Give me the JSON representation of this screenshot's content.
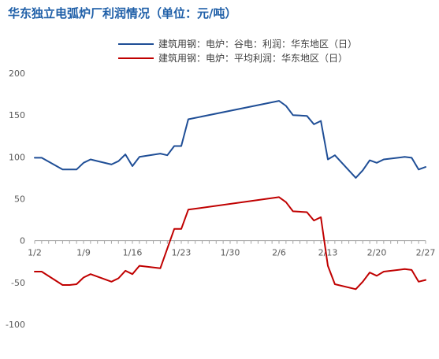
{
  "chart_data": {
    "type": "line",
    "title": "华东独立电弧炉厂利润情况（单位：元/吨）",
    "xlabel": "",
    "ylabel": "",
    "ylim": [
      -100,
      200
    ],
    "yticks": [
      -100,
      -50,
      0,
      50,
      100,
      150,
      200
    ],
    "x_domain": [
      "1/2",
      "2/27"
    ],
    "xticks": [
      "1/2",
      "1/9",
      "1/16",
      "1/23",
      "1/30",
      "2/6",
      "2/13",
      "2/20",
      "2/27"
    ],
    "grid": false,
    "legend_position": "top-center",
    "series": [
      {
        "name": "建筑用钢：电炉：谷电：利润：华东地区（日）",
        "color": "#1f4e96",
        "points": [
          [
            "1/2",
            99
          ],
          [
            "1/3",
            99
          ],
          [
            "1/6",
            85
          ],
          [
            "1/8",
            85
          ],
          [
            "1/9",
            93
          ],
          [
            "1/10",
            97
          ],
          [
            "1/13",
            91
          ],
          [
            "1/14",
            95
          ],
          [
            "1/15",
            103
          ],
          [
            "1/16",
            89
          ],
          [
            "1/17",
            100
          ],
          [
            "1/20",
            104
          ],
          [
            "1/21",
            102
          ],
          [
            "1/22",
            113
          ],
          [
            "1/23",
            113
          ],
          [
            "1/24",
            145
          ],
          [
            "2/6",
            167
          ],
          [
            "2/7",
            161
          ],
          [
            "2/8",
            150
          ],
          [
            "2/10",
            149
          ],
          [
            "2/11",
            139
          ],
          [
            "2/12",
            143
          ],
          [
            "2/13",
            97
          ],
          [
            "2/14",
            102
          ],
          [
            "2/17",
            75
          ],
          [
            "2/18",
            84
          ],
          [
            "2/19",
            96
          ],
          [
            "2/20",
            93
          ],
          [
            "2/21",
            97
          ],
          [
            "2/24",
            100
          ],
          [
            "2/25",
            99
          ],
          [
            "2/26",
            85
          ],
          [
            "2/27",
            88
          ]
        ]
      },
      {
        "name": "建筑用钢：电炉：平均利润：华东地区（日）",
        "color": "#c00000",
        "points": [
          [
            "1/2",
            -37
          ],
          [
            "1/3",
            -37
          ],
          [
            "1/6",
            -53
          ],
          [
            "1/7",
            -53
          ],
          [
            "1/8",
            -52
          ],
          [
            "1/9",
            -44
          ],
          [
            "1/10",
            -40
          ],
          [
            "1/13",
            -49
          ],
          [
            "1/14",
            -45
          ],
          [
            "1/15",
            -36
          ],
          [
            "1/16",
            -40
          ],
          [
            "1/17",
            -30
          ],
          [
            "1/20",
            -33
          ],
          [
            "1/22",
            14
          ],
          [
            "1/23",
            14
          ],
          [
            "1/24",
            37
          ],
          [
            "2/6",
            52
          ],
          [
            "2/7",
            46
          ],
          [
            "2/8",
            35
          ],
          [
            "2/10",
            34
          ],
          [
            "2/11",
            24
          ],
          [
            "2/12",
            28
          ],
          [
            "2/13",
            -30
          ],
          [
            "2/14",
            -52
          ],
          [
            "2/17",
            -58
          ],
          [
            "2/18",
            -49
          ],
          [
            "2/19",
            -38
          ],
          [
            "2/20",
            -42
          ],
          [
            "2/21",
            -37
          ],
          [
            "2/24",
            -34
          ],
          [
            "2/25",
            -35
          ],
          [
            "2/26",
            -49
          ],
          [
            "2/27",
            -47
          ]
        ]
      }
    ]
  }
}
